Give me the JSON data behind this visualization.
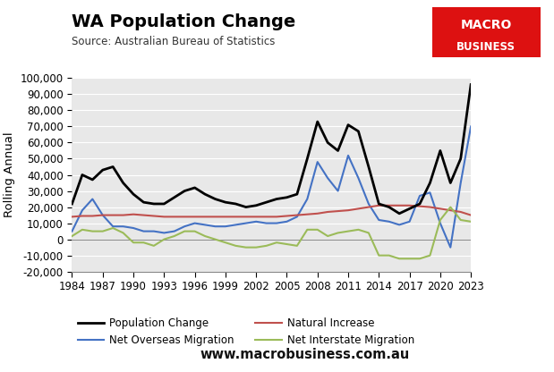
{
  "title": "WA Population Change",
  "subtitle": "Source: Australian Bureau of Statistics",
  "ylabel": "Rolling Annual",
  "website": "www.macrobusiness.com.au",
  "ylim": [
    -20000,
    100000
  ],
  "yticks": [
    -20000,
    -10000,
    0,
    10000,
    20000,
    30000,
    40000,
    50000,
    60000,
    70000,
    80000,
    90000,
    100000
  ],
  "background_color": "#e8e8e8",
  "years": [
    1984,
    1985,
    1986,
    1987,
    1988,
    1989,
    1990,
    1991,
    1992,
    1993,
    1994,
    1995,
    1996,
    1997,
    1998,
    1999,
    2000,
    2001,
    2002,
    2003,
    2004,
    2005,
    2006,
    2007,
    2008,
    2009,
    2010,
    2011,
    2012,
    2013,
    2014,
    2015,
    2016,
    2017,
    2018,
    2019,
    2020,
    2021,
    2022,
    2023
  ],
  "population_change": [
    22000,
    40000,
    37000,
    43000,
    45000,
    35000,
    28000,
    23000,
    22000,
    22000,
    26000,
    30000,
    32000,
    28000,
    25000,
    23000,
    22000,
    20000,
    21000,
    23000,
    25000,
    26000,
    28000,
    50000,
    73000,
    60000,
    55000,
    71000,
    67000,
    45000,
    22000,
    20000,
    16000,
    19000,
    22000,
    35000,
    55000,
    35000,
    50000,
    96000
  ],
  "net_overseas": [
    5000,
    18000,
    25000,
    15000,
    8000,
    8000,
    7000,
    5000,
    5000,
    4000,
    5000,
    8000,
    10000,
    9000,
    8000,
    8000,
    9000,
    10000,
    11000,
    10000,
    10000,
    11000,
    14000,
    25000,
    48000,
    38000,
    30000,
    52000,
    38000,
    22000,
    12000,
    11000,
    9000,
    11000,
    27000,
    29000,
    10000,
    -5000,
    35000,
    70000
  ],
  "natural_increase": [
    14000,
    14500,
    14500,
    15000,
    15000,
    15000,
    15500,
    15000,
    14500,
    14000,
    14000,
    14000,
    14000,
    14000,
    14000,
    14000,
    14000,
    14000,
    14000,
    14000,
    14000,
    14500,
    15000,
    15500,
    16000,
    17000,
    17500,
    18000,
    19000,
    20000,
    21000,
    21000,
    21000,
    21000,
    20500,
    20000,
    19000,
    18000,
    17000,
    15000
  ],
  "net_interstate": [
    2000,
    6000,
    5000,
    5000,
    7000,
    4000,
    -2000,
    -2000,
    -4000,
    0,
    2000,
    5000,
    5000,
    2000,
    0,
    -2000,
    -4000,
    -5000,
    -5000,
    -4000,
    -2000,
    -3000,
    -4000,
    6000,
    6000,
    2000,
    4000,
    5000,
    6000,
    4000,
    -10000,
    -10000,
    -12000,
    -12000,
    -12000,
    -10000,
    12000,
    20000,
    12000,
    11000
  ],
  "series_colors": {
    "population_change": "#000000",
    "net_overseas": "#4472c4",
    "natural_increase": "#c0504d",
    "net_interstate": "#9bbb59"
  },
  "legend_labels": [
    "Population Change",
    "Net Overseas Migration",
    "Natural Increase",
    "Net Interstate Migration"
  ],
  "xtick_years": [
    1984,
    1987,
    1990,
    1993,
    1996,
    1999,
    2002,
    2005,
    2008,
    2011,
    2014,
    2017,
    2020,
    2023
  ],
  "logo_color": "#dd1111",
  "fig_bg": "#ffffff"
}
